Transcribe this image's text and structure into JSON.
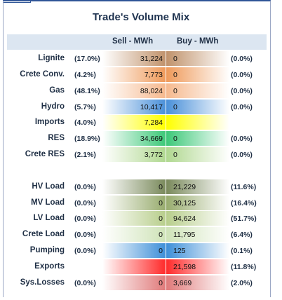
{
  "chart_data": {
    "type": "table",
    "title": "Trade's Volume Mix",
    "columns": [
      "Sell - MWh",
      "Buy - MWh"
    ],
    "rows": [
      {
        "label": "Lignite",
        "sell_pct": "(17.0%)",
        "sell": "31,224",
        "buy": "0",
        "buy_pct": "(0.0%)",
        "sell_color": "#c0926b",
        "buy_color": "#c0926b"
      },
      {
        "label": "Crete Conv.",
        "sell_pct": "(4.2%)",
        "sell": "7,773",
        "buy": "0",
        "buy_pct": "(0.0%)",
        "sell_color": "#ef9a5a",
        "buy_color": "#ef9a5a"
      },
      {
        "label": "Gas",
        "sell_pct": "(48.1%)",
        "sell": "88,024",
        "buy": "0",
        "buy_pct": "(0.0%)",
        "sell_color": "#f6b98e",
        "buy_color": "#f6b98e"
      },
      {
        "label": "Hydro",
        "sell_pct": "(5.7%)",
        "sell": "10,417",
        "buy": "0",
        "buy_pct": "(0.0%)",
        "sell_color": "#4a90d9",
        "buy_color": "#4a90d9"
      },
      {
        "label": "Imports",
        "sell_pct": "(4.0%)",
        "sell": "7,284",
        "buy": "",
        "buy_pct": "",
        "sell_color": "#ffff00",
        "buy_color": "#ffff00"
      },
      {
        "label": "RES",
        "sell_pct": "(18.9%)",
        "sell": "34,669",
        "buy": "0",
        "buy_pct": "(0.0%)",
        "sell_color": "#3cc878",
        "buy_color": "#3cc878"
      },
      {
        "label": "Crete RES",
        "sell_pct": "(2.1%)",
        "sell": "3,772",
        "buy": "0",
        "buy_pct": "(0.0%)",
        "sell_color": "#b0d890",
        "buy_color": "#b0d890"
      },
      {
        "label": "HV Load",
        "sell_pct": "(0.0%)",
        "sell": "0",
        "buy": "21,229",
        "buy_pct": "(11.6%)",
        "sell_color": "#7a8a5c",
        "buy_color": "#7a8a5c"
      },
      {
        "label": "MV Load",
        "sell_pct": "(0.0%)",
        "sell": "0",
        "buy": "30,125",
        "buy_pct": "(16.4%)",
        "sell_color": "#98ac6e",
        "buy_color": "#98ac6e"
      },
      {
        "label": "LV Load",
        "sell_pct": "(0.0%)",
        "sell": "0",
        "buy": "94,624",
        "buy_pct": "(51.7%)",
        "sell_color": "#b8ce8c",
        "buy_color": "#b8ce8c"
      },
      {
        "label": "Crete Load",
        "sell_pct": "(0.0%)",
        "sell": "0",
        "buy": "11,795",
        "buy_pct": "(6.4%)",
        "sell_color": "#cfe3b8",
        "buy_color": "#cfe3b8"
      },
      {
        "label": "Pumping",
        "sell_pct": "(0.0%)",
        "sell": "0",
        "buy": "125",
        "buy_pct": "(0.1%)",
        "sell_color": "#3d8fd8",
        "buy_color": "#3d8fd8"
      },
      {
        "label": "Exports",
        "sell_pct": "",
        "sell": "",
        "buy": "21,598",
        "buy_pct": "(11.8%)",
        "sell_color": "#ff2a2a",
        "buy_color": "#ff2a2a"
      },
      {
        "label": "Sys.Losses",
        "sell_pct": "(0.0%)",
        "sell": "0",
        "buy": "3,669",
        "buy_pct": "(2.0%)",
        "sell_color": "#e07a7a",
        "buy_color": "#e07a7a"
      }
    ]
  }
}
